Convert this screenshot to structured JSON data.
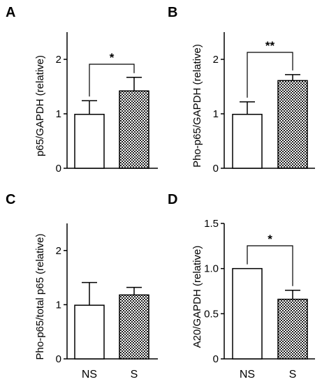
{
  "chart_data": [
    {
      "type": "bar",
      "panel": "A",
      "ylabel": "p65/GAPDH (relative)",
      "ylim": [
        0,
        2.5
      ],
      "yticks": [
        "0",
        "1",
        "2"
      ],
      "categories": [
        "NS",
        "S"
      ],
      "show_categories": false,
      "values": [
        0.99,
        1.42
      ],
      "errors": [
        0.25,
        0.25
      ],
      "fills": [
        "white",
        "hatched"
      ],
      "significance": "*"
    },
    {
      "type": "bar",
      "panel": "B",
      "ylabel": "Pho-p65/GAPDH (relative)",
      "ylim": [
        0,
        2.5
      ],
      "yticks": [
        "0",
        "1",
        "2"
      ],
      "categories": [
        "NS",
        "S"
      ],
      "show_categories": false,
      "values": [
        0.99,
        1.61
      ],
      "errors": [
        0.23,
        0.11
      ],
      "fills": [
        "white",
        "hatched"
      ],
      "significance": "**"
    },
    {
      "type": "bar",
      "panel": "C",
      "ylabel": "Pho-p65/total p65 (relative)",
      "ylim": [
        0,
        2.5
      ],
      "yticks": [
        "0",
        "1",
        "2"
      ],
      "categories": [
        "NS",
        "S"
      ],
      "show_categories": true,
      "values": [
        0.99,
        1.18
      ],
      "errors": [
        0.42,
        0.14
      ],
      "fills": [
        "white",
        "hatched"
      ],
      "significance": ""
    },
    {
      "type": "bar",
      "panel": "D",
      "ylabel": "A20/GAPDH (relative)",
      "ylim": [
        0,
        1.5
      ],
      "yticks": [
        "0",
        "0.5",
        "1.0",
        "1.5"
      ],
      "categories": [
        "NS",
        "S"
      ],
      "show_categories": true,
      "values": [
        1.0,
        0.66
      ],
      "errors": [
        0.0,
        0.1
      ],
      "fills": [
        "white",
        "hatched"
      ],
      "significance": "*"
    }
  ]
}
